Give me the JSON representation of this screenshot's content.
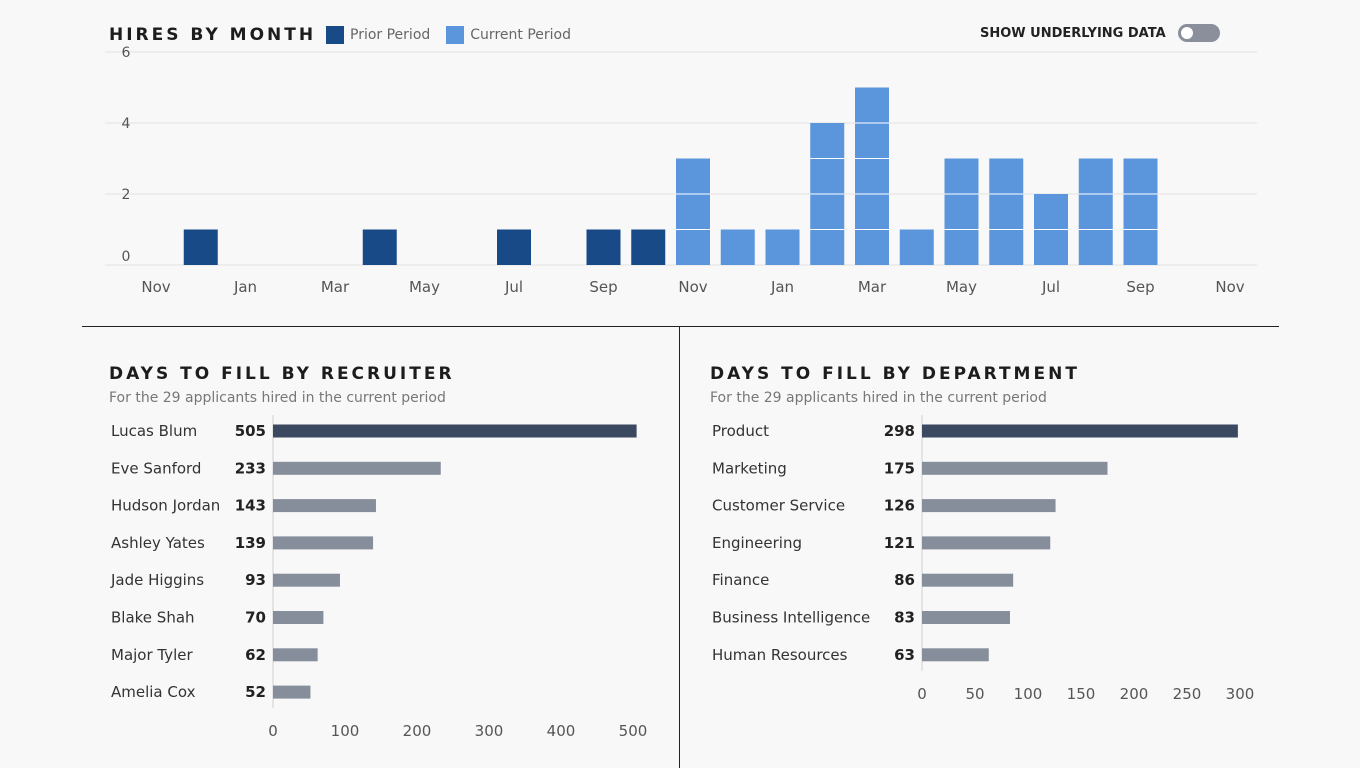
{
  "hires": {
    "title": "HIRES BY MONTH",
    "legend": [
      {
        "label": "Prior Period",
        "color": "#174a87"
      },
      {
        "label": "Current Period",
        "color": "#5b96dc"
      }
    ],
    "toggle_label": "SHOW UNDERLYING DATA"
  },
  "recruiter": {
    "title": "DAYS TO FILL BY RECRUITER",
    "subtitle": "For the 29 applicants hired in the current period"
  },
  "department": {
    "title": "DAYS TO FILL BY DEPARTMENT",
    "subtitle": "For the 29 applicants hired in the current period"
  },
  "chart_data": [
    {
      "type": "bar",
      "title": "HIRES BY MONTH",
      "ylim": [
        0,
        6
      ],
      "yticks": [
        0,
        2,
        4,
        6
      ],
      "xticks": [
        "Nov",
        "Jan",
        "Mar",
        "May",
        "Jul",
        "Sep",
        "Nov",
        "Jan",
        "Mar",
        "May",
        "Jul",
        "Sep",
        "Nov"
      ],
      "series": [
        {
          "name": "Prior Period",
          "color": "#174a87",
          "months": [
            1,
            5,
            8,
            10,
            11
          ],
          "values": [
            1,
            1,
            1,
            1,
            1
          ]
        },
        {
          "name": "Current Period",
          "color": "#5b96dc",
          "months": [
            12,
            13,
            14,
            15,
            16,
            17,
            18,
            19,
            20,
            21,
            22
          ],
          "values": [
            3,
            1,
            1,
            4,
            5,
            1,
            3,
            3,
            2,
            3,
            3
          ]
        }
      ]
    },
    {
      "type": "bar",
      "orientation": "horizontal",
      "title": "DAYS TO FILL BY RECRUITER",
      "xlim": [
        0,
        500
      ],
      "xticks": [
        0,
        100,
        200,
        300,
        400,
        500
      ],
      "categories": [
        "Lucas Blum",
        "Eve Sanford",
        "Hudson Jordan",
        "Ashley Yates",
        "Jade Higgins",
        "Blake Shah",
        "Major Tyler",
        "Amelia Cox"
      ],
      "values": [
        505,
        233,
        143,
        139,
        93,
        70,
        62,
        52
      ],
      "highlight_color": "#3a4860",
      "bar_color": "#878e9b"
    },
    {
      "type": "bar",
      "orientation": "horizontal",
      "title": "DAYS TO FILL BY DEPARTMENT",
      "xlim": [
        0,
        300
      ],
      "xticks": [
        0,
        50,
        100,
        150,
        200,
        250,
        300
      ],
      "categories": [
        "Product",
        "Marketing",
        "Customer Service",
        "Engineering",
        "Finance",
        "Business Intelligence",
        "Human Resources"
      ],
      "values": [
        298,
        175,
        126,
        121,
        86,
        83,
        63
      ],
      "highlight_color": "#3a4860",
      "bar_color": "#878e9b"
    }
  ]
}
